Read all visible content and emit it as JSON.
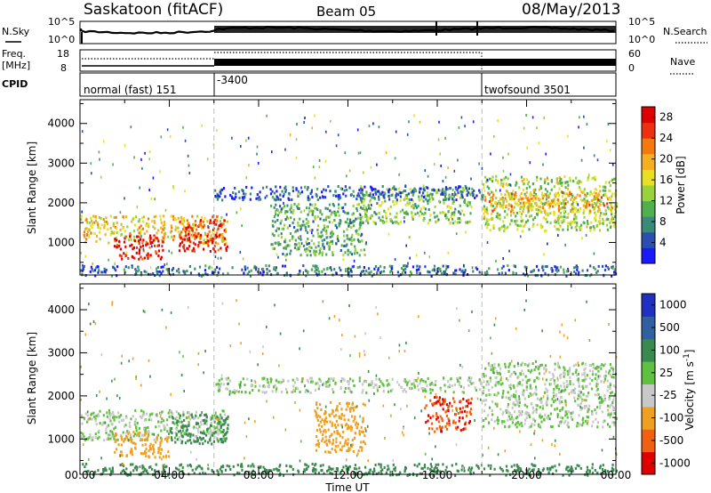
{
  "header": {
    "title": "Saskatoon (fitACF)",
    "beam": "Beam 05",
    "date": "08/May/2013"
  },
  "top_panels": {
    "nsky": {
      "label": "N.Sky",
      "ticks": [
        "10^5",
        "10^0"
      ]
    },
    "nsearch": {
      "label": "N.Search",
      "ticks": [
        "10^5",
        "10^0"
      ]
    },
    "freq": {
      "label_line1": "Freq.",
      "label_line2": "[MHz]",
      "ticks": [
        "18",
        "8"
      ]
    },
    "nave": {
      "label": "Nave",
      "ticks": [
        "60",
        "0"
      ]
    },
    "cpid": {
      "label": "CPID",
      "segments": [
        {
          "name": "normal (fast) 151",
          "start_hr": 0
        },
        {
          "name": "-3400",
          "start_hr": 6
        },
        {
          "name": "twofsound 3501",
          "start_hr": 18
        }
      ]
    }
  },
  "chart_data": [
    {
      "type": "heatmap",
      "quantity": "Power",
      "ylabel": "Slant Range [km]",
      "xlabel": "",
      "x_range_hr": [
        0,
        24
      ],
      "ylim": [
        180,
        4600
      ],
      "y_ticks": [
        "4000",
        "3000",
        "2000",
        "1000"
      ],
      "y_tick_values": [
        4000,
        3000,
        2000,
        1000
      ],
      "colorbar": {
        "label": "Power [dB]",
        "ticks": [
          "28",
          "24",
          "20",
          "16",
          "12",
          "8",
          "4"
        ],
        "tick_values": [
          28,
          24,
          20,
          16,
          12,
          8,
          4
        ],
        "range": [
          0,
          30
        ],
        "colors": [
          "#1a1aff",
          "#2a4fb0",
          "#3a8a7a",
          "#50b050",
          "#9ad23c",
          "#e8e020",
          "#f5b020",
          "#f47a10",
          "#ee3010",
          "#e00000"
        ]
      },
      "regions": [
        {
          "t0": 0,
          "t1": 6.6,
          "r0": 1000,
          "r1": 1700,
          "level": 18
        },
        {
          "t0": 1.5,
          "t1": 3.7,
          "r0": 600,
          "r1": 1200,
          "level": 28
        },
        {
          "t0": 4.4,
          "t1": 6.6,
          "r0": 800,
          "r1": 1600,
          "level": 27
        },
        {
          "t0": 8.5,
          "t1": 12.8,
          "r0": 700,
          "r1": 2000,
          "level": 10
        },
        {
          "t0": 12.5,
          "t1": 17.5,
          "r0": 1500,
          "r1": 2400,
          "level": 12
        },
        {
          "t0": 6,
          "t1": 18,
          "r0": 2100,
          "r1": 2450,
          "level": 5
        },
        {
          "t0": 18,
          "t1": 24,
          "r0": 1300,
          "r1": 2700,
          "level": 14
        },
        {
          "t0": 18,
          "t1": 24,
          "r0": 1800,
          "r1": 2300,
          "level": 20
        },
        {
          "t0": 0,
          "t1": 24,
          "r0": 180,
          "r1": 450,
          "level": 6
        }
      ]
    },
    {
      "type": "heatmap",
      "quantity": "Velocity",
      "ylabel": "Slant Range [km]",
      "xlabel": "Time UT",
      "x_range_hr": [
        0,
        24
      ],
      "x_ticks": [
        "00:00",
        "04:00",
        "08:00",
        "12:00",
        "16:00",
        "20:00",
        "00:00"
      ],
      "x_tick_values": [
        0,
        4,
        8,
        12,
        16,
        20,
        24
      ],
      "ylim": [
        180,
        4600
      ],
      "y_ticks": [
        "4000",
        "3000",
        "2000",
        "1000"
      ],
      "y_tick_values": [
        4000,
        3000,
        2000,
        1000
      ],
      "colorbar": {
        "label": "Velocity [m s^-1]",
        "ticks": [
          "1000",
          "500",
          "100",
          "25",
          "-25",
          "-100",
          "-500",
          "-1000"
        ],
        "tick_values": [
          1000,
          500,
          100,
          25,
          -25,
          -100,
          -500,
          -1000
        ],
        "colors": [
          "#2030c0",
          "#3060a0",
          "#3a8a50",
          "#60c040",
          "#c8c8c8",
          "#f0a020",
          "#f06010",
          "#e00000"
        ]
      },
      "regions": [
        {
          "t0": 0,
          "t1": 6.6,
          "r0": 1000,
          "r1": 1700,
          "level": 0
        },
        {
          "t0": 1.5,
          "t1": 4.0,
          "r0": 600,
          "r1": 1200,
          "level": -150
        },
        {
          "t0": 4.0,
          "t1": 6.6,
          "r0": 900,
          "r1": 1600,
          "level": 150
        },
        {
          "t0": 10.5,
          "t1": 12.8,
          "r0": 700,
          "r1": 1900,
          "level": -200
        },
        {
          "t0": 15.4,
          "t1": 17.5,
          "r0": 1200,
          "r1": 2000,
          "level": -700
        },
        {
          "t0": 6,
          "t1": 18,
          "r0": 2100,
          "r1": 2450,
          "level": 0
        },
        {
          "t0": 18,
          "t1": 24,
          "r0": 1300,
          "r1": 2800,
          "level": 0
        },
        {
          "t0": 0,
          "t1": 24,
          "r0": 180,
          "r1": 450,
          "level": 120
        }
      ]
    }
  ]
}
